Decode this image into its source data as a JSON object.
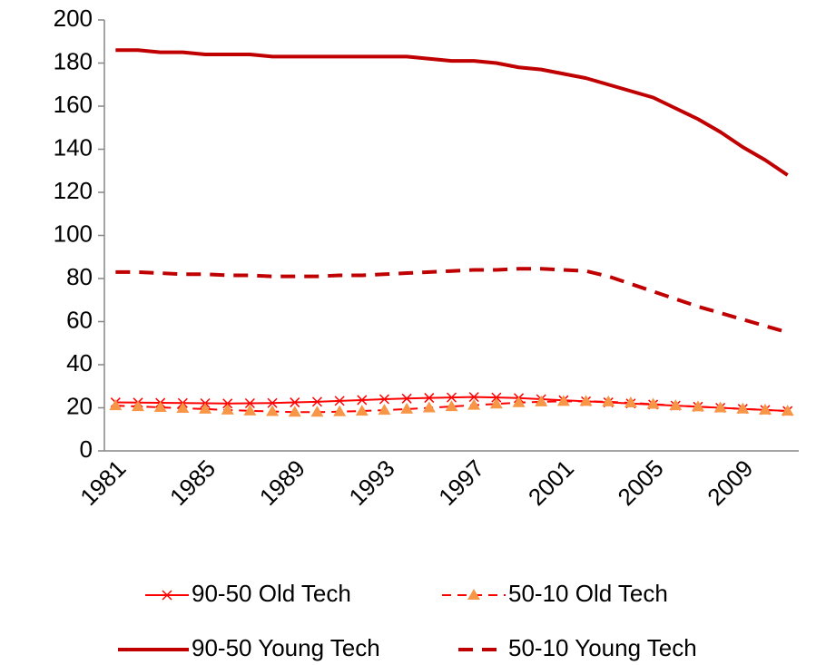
{
  "chart_data": {
    "type": "line",
    "categories": [
      "1981",
      null,
      null,
      null,
      "1985",
      null,
      null,
      null,
      "1989",
      null,
      null,
      null,
      "1993",
      null,
      null,
      null,
      "1997",
      null,
      null,
      null,
      "2001",
      null,
      null,
      null,
      "2005",
      null,
      null,
      null,
      "2009",
      null,
      null
    ],
    "ylim": [
      0,
      200
    ],
    "yticks": [
      0,
      20,
      40,
      60,
      80,
      100,
      120,
      140,
      160,
      180,
      200
    ],
    "grid": false,
    "legend": "bottom",
    "series": [
      {
        "name": "90-50 Old Tech",
        "color": "#ff0000",
        "marker": "x",
        "marker_color": "#ff0000",
        "dash": false,
        "width": 2,
        "values": [
          22.5,
          22.4,
          22.3,
          22.2,
          22.1,
          22,
          22.1,
          22.2,
          22.5,
          22.8,
          23.2,
          23.6,
          24,
          24.3,
          24.6,
          24.8,
          25,
          24.8,
          24.5,
          24,
          23.5,
          23,
          22.5,
          22,
          21.5,
          21,
          20.5,
          20,
          19.5,
          19,
          18.5
        ]
      },
      {
        "name": "50-10 Old Tech",
        "color": "#ff0000",
        "marker": "triangle",
        "marker_color": "#f79646",
        "dash": true,
        "width": 2,
        "values": [
          21,
          20.6,
          20.2,
          19.8,
          19.4,
          19,
          18.6,
          18.3,
          18,
          18,
          18.2,
          18.5,
          18.9,
          19.4,
          20,
          20.6,
          21.2,
          21.8,
          22.4,
          22.8,
          23,
          23,
          22.8,
          22.3,
          21.7,
          21,
          20.5,
          20,
          19.5,
          19,
          18.5
        ]
      },
      {
        "name": "90-50 Young Tech",
        "color": "#c00000",
        "marker": null,
        "marker_color": null,
        "dash": false,
        "width": 4,
        "values": [
          186,
          186,
          185,
          185,
          184,
          184,
          184,
          183,
          183,
          183,
          183,
          183,
          183,
          183,
          182,
          181,
          181,
          180,
          178,
          177,
          175,
          173,
          170,
          167,
          164,
          159,
          154,
          148,
          141,
          135,
          128
        ]
      },
      {
        "name": "50-10 Young Tech",
        "color": "#c00000",
        "marker": null,
        "marker_color": null,
        "dash": true,
        "width": 4,
        "values": [
          83,
          83,
          82.5,
          82,
          82,
          81.5,
          81.5,
          81,
          81,
          81,
          81.5,
          81.5,
          82,
          82.5,
          83,
          83.5,
          84,
          84,
          84.5,
          84.5,
          84,
          83.5,
          81,
          77.5,
          74,
          70.5,
          67,
          64,
          61,
          58,
          55
        ]
      }
    ]
  }
}
